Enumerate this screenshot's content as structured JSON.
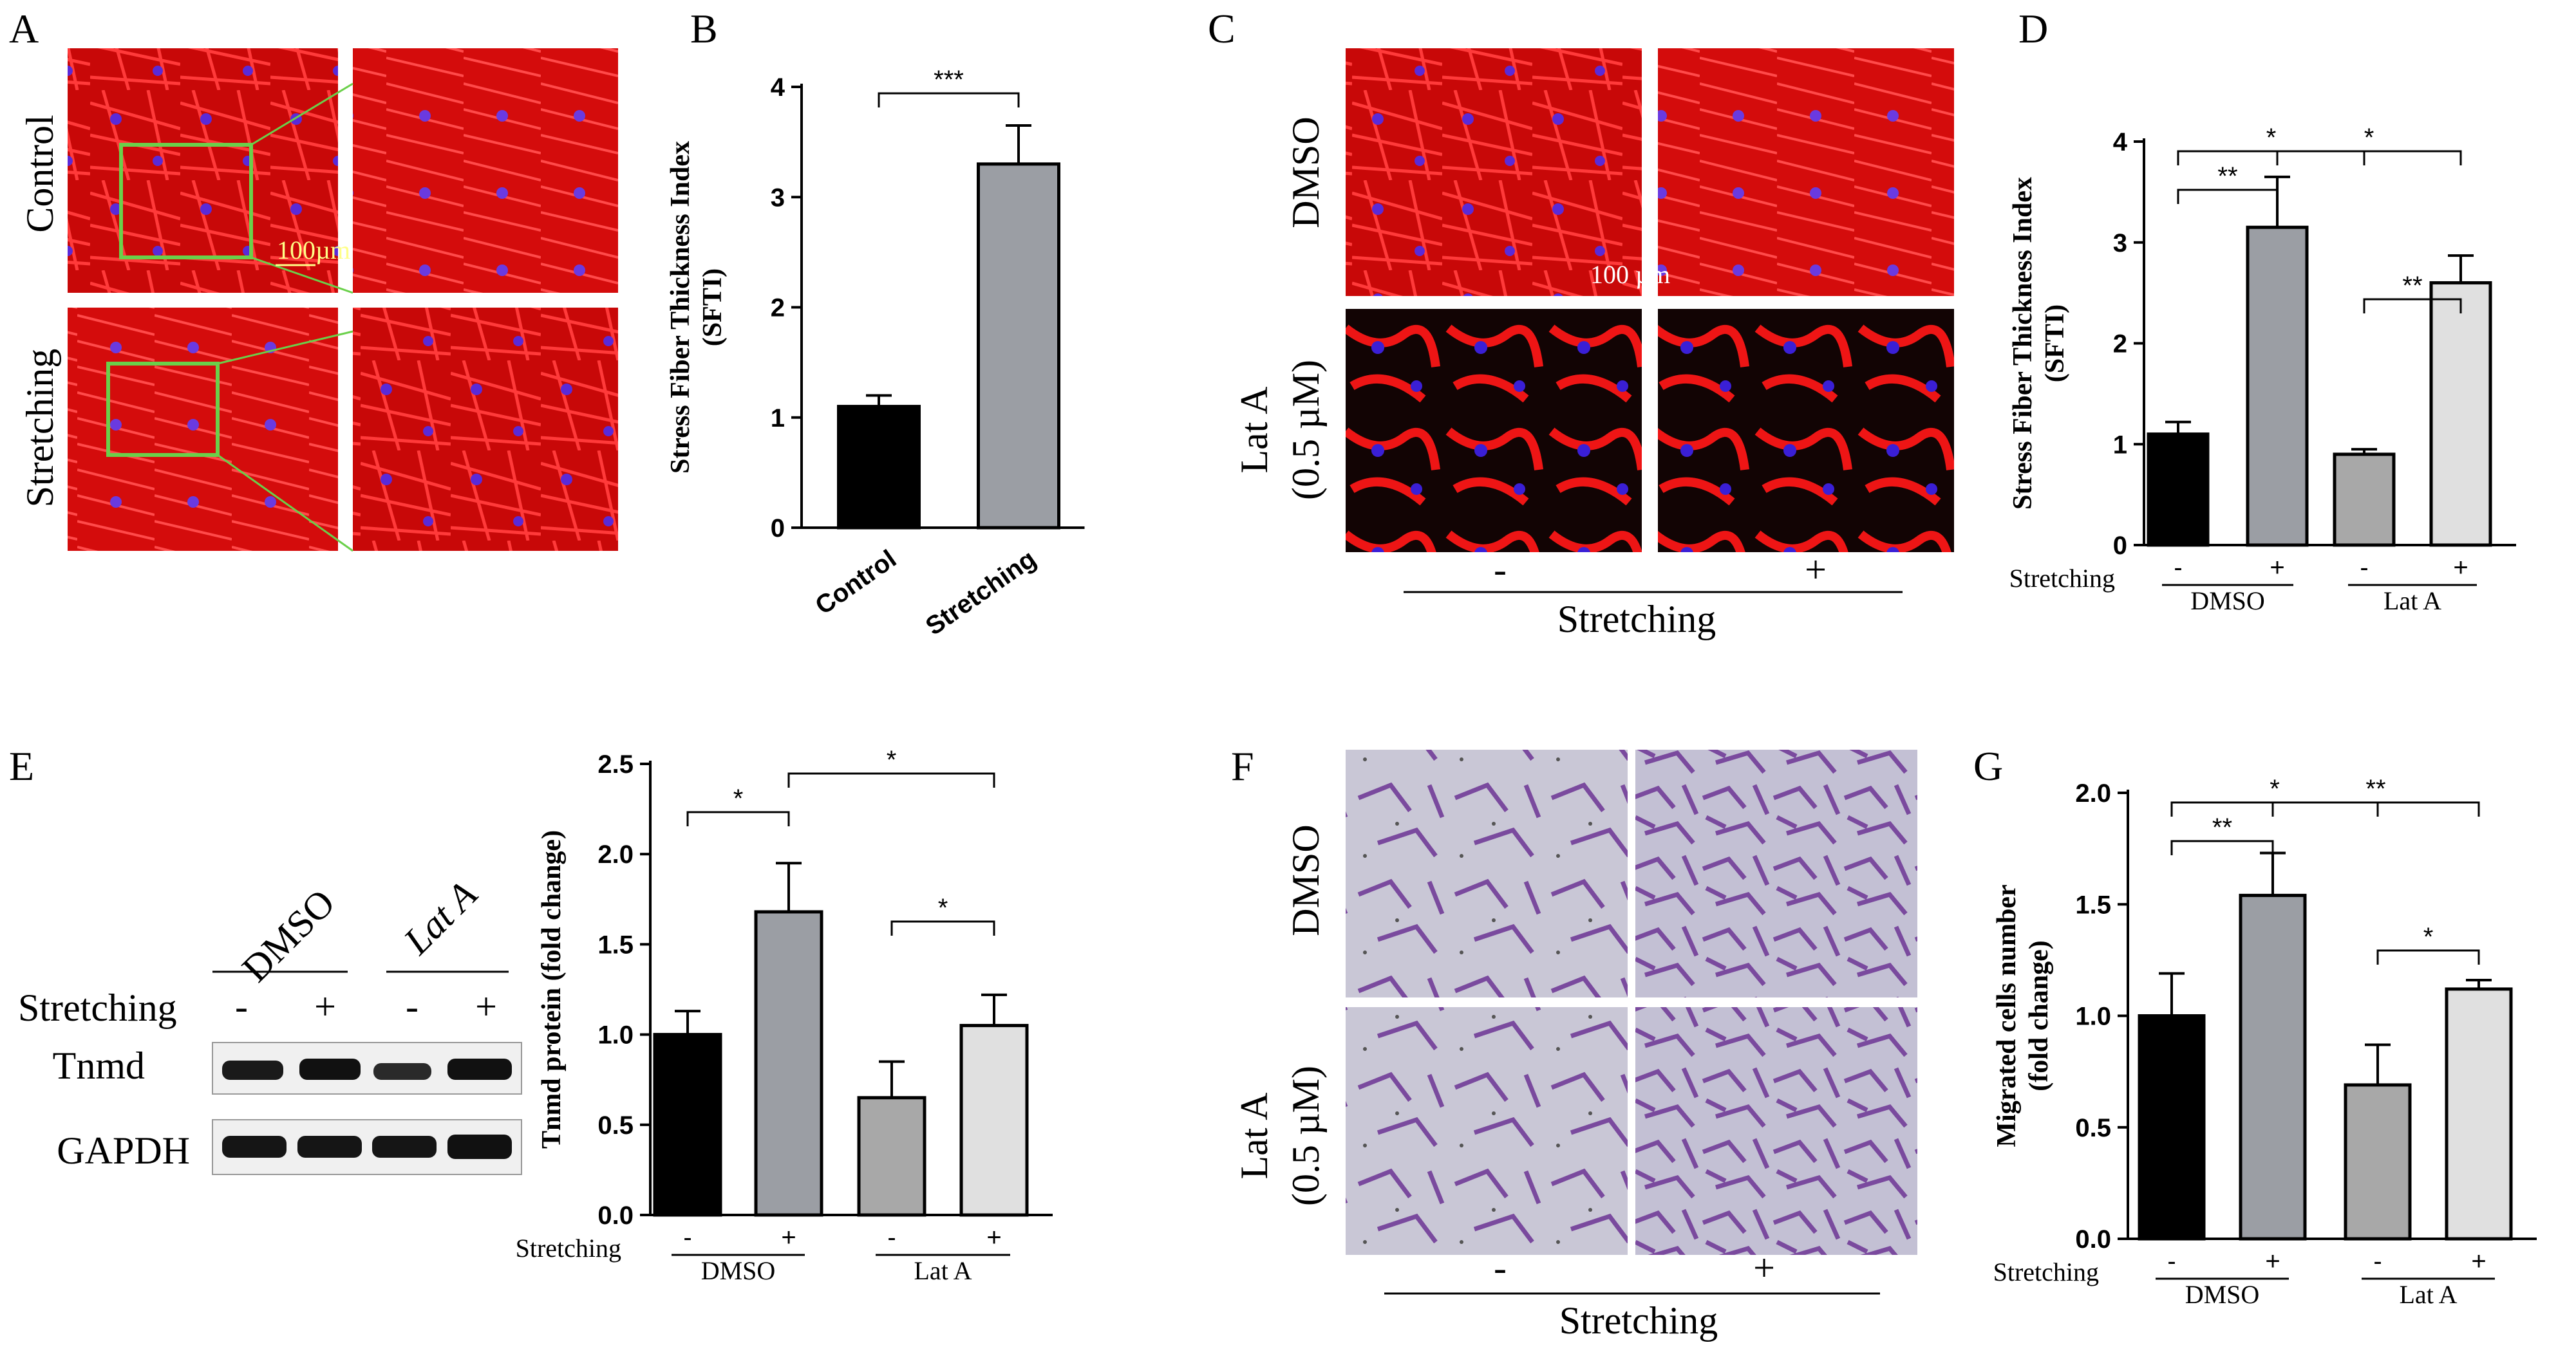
{
  "panel_labels": [
    "A",
    "B",
    "C",
    "D",
    "E",
    "F",
    "G"
  ],
  "panel_A": {
    "row_labels": [
      "Control",
      "Stretching"
    ],
    "scale_bar": "100µm"
  },
  "panel_C": {
    "row_labels": [
      "DMSO",
      "Lat A",
      "(0.5 µM)"
    ],
    "col_signs": [
      "-",
      "+"
    ],
    "axis_label": "Stretching",
    "scale_bar": "100 µm"
  },
  "panel_E": {
    "lane_groups": [
      "DMSO",
      "Lat A"
    ],
    "stretch_label": "Stretching",
    "signs": [
      "-",
      "+",
      "-",
      "+"
    ],
    "bands": [
      "Tnmd",
      "GAPDH"
    ]
  },
  "panel_F": {
    "row_labels": [
      "DMSO",
      "Lat A",
      "(0.5 µM)"
    ],
    "col_signs": [
      "-",
      "+"
    ],
    "axis_label": "Stretching"
  },
  "colors": {
    "black": "#000000",
    "dark_gray": "#9b9ea4",
    "mid_gray": "#a8a8a8",
    "light_gray": "#e0e0e0",
    "phalloidin_red": "#ee1111",
    "nuclei_blue": "#3a1fd6",
    "crystal_violet": "#7a4a9e"
  },
  "chart_data": [
    {
      "panel": "B",
      "type": "bar",
      "categories": [
        "Control",
        "Stretching"
      ],
      "values": [
        1.1,
        3.3
      ],
      "errors": [
        0.1,
        0.35
      ],
      "ylabel": "Stress Fiber Thickness Index",
      "ylabel2": "(SFTI)",
      "ylim": [
        0,
        4
      ],
      "yticks": [
        "0",
        "1",
        "2",
        "3",
        "4"
      ],
      "significance": [
        {
          "pair": [
            0,
            1
          ],
          "label": "***"
        }
      ]
    },
    {
      "panel": "D",
      "type": "bar",
      "categories": [
        "-",
        "+",
        "-",
        "+"
      ],
      "groups": [
        "DMSO",
        "Lat A"
      ],
      "values": [
        1.1,
        3.15,
        0.9,
        2.6
      ],
      "errors": [
        0.12,
        0.5,
        0.05,
        0.27
      ],
      "ylabel": "Stress Fiber Thickness Index",
      "ylabel2": "(SFTI)",
      "xlabel": "Stretching",
      "ylim": [
        0,
        4
      ],
      "yticks": [
        "0",
        "1",
        "2",
        "3",
        "4"
      ],
      "significance": [
        {
          "pair": [
            0,
            1
          ],
          "label": "**"
        },
        {
          "pair": [
            0,
            2
          ],
          "label": "*"
        },
        {
          "pair": [
            1,
            3
          ],
          "label": "*"
        },
        {
          "pair": [
            2,
            3
          ],
          "label": "**"
        }
      ]
    },
    {
      "panel": "E",
      "type": "bar",
      "categories": [
        "-",
        "+",
        "-",
        "+"
      ],
      "groups": [
        "DMSO",
        "Lat A"
      ],
      "values": [
        1.0,
        1.68,
        0.65,
        1.05
      ],
      "errors": [
        0.13,
        0.27,
        0.2,
        0.17
      ],
      "ylabel": "Tnmd protein (fold change)",
      "xlabel": "Stretching",
      "ylim": [
        0,
        2.5
      ],
      "yticks": [
        "0.0",
        "0.5",
        "1.0",
        "1.5",
        "2.0",
        "2.5"
      ],
      "significance": [
        {
          "pair": [
            0,
            1
          ],
          "label": "*"
        },
        {
          "pair": [
            1,
            3
          ],
          "label": "*"
        },
        {
          "pair": [
            2,
            3
          ],
          "label": "*"
        }
      ]
    },
    {
      "panel": "G",
      "type": "bar",
      "categories": [
        "-",
        "+",
        "-",
        "+"
      ],
      "groups": [
        "DMSO",
        "Lat A"
      ],
      "values": [
        1.0,
        1.54,
        0.69,
        1.12
      ],
      "errors": [
        0.19,
        0.19,
        0.18,
        0.04
      ],
      "ylabel": "Migrated cells number",
      "ylabel2": "(fold change)",
      "xlabel": "Stretching",
      "ylim": [
        0,
        2.0
      ],
      "yticks": [
        "0.0",
        "0.5",
        "1.0",
        "1.5",
        "2.0"
      ],
      "significance": [
        {
          "pair": [
            0,
            2
          ],
          "label": "*"
        },
        {
          "pair": [
            0,
            1
          ],
          "label": "**"
        },
        {
          "pair": [
            1,
            3
          ],
          "label": "**"
        },
        {
          "pair": [
            2,
            3
          ],
          "label": "*"
        }
      ]
    }
  ]
}
